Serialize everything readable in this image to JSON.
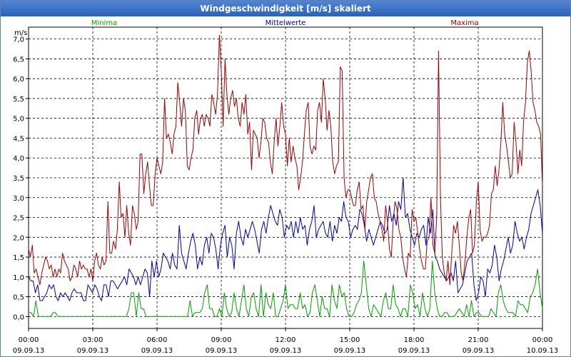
{
  "window": {
    "title": "Windgeschwindigkeit [m/s] skaliert"
  },
  "chart_data": {
    "type": "line",
    "title": "Windgeschwindigkeit [m/s] skaliert",
    "ylabel": "m/s",
    "xlabel": "",
    "ylim": [
      -0.3,
      7.3
    ],
    "xlim": [
      0,
      24
    ],
    "grid": true,
    "legend_position": "top",
    "y_ticks": [
      "0,0",
      "0,5",
      "1,0",
      "1,5",
      "2,0",
      "2,5",
      "3,0",
      "3,5",
      "4,0",
      "4,5",
      "5,0",
      "5,5",
      "6,0",
      "6,5",
      "7,0"
    ],
    "x_ticks": [
      {
        "time": "00:00",
        "date": "09.09.13"
      },
      {
        "time": "03:00",
        "date": "09.09.13"
      },
      {
        "time": "06:00",
        "date": "09.09.13"
      },
      {
        "time": "09:00",
        "date": "09.09.13"
      },
      {
        "time": "12:00",
        "date": "09.09.13"
      },
      {
        "time": "15:00",
        "date": "09.09.13"
      },
      {
        "time": "18:00",
        "date": "09.09.13"
      },
      {
        "time": "21:00",
        "date": "09.09.13"
      },
      {
        "time": "00:00",
        "date": "10.09.13"
      }
    ],
    "series": [
      {
        "name": "Minima",
        "color": "#00a000",
        "values": [
          0.1,
          0.1,
          0.0,
          0.4,
          0.0,
          0.0,
          0.0,
          0.0,
          0.0,
          0.0,
          0.1,
          0.1,
          0.0,
          0.0,
          0.0,
          0.0,
          0.0,
          0.0,
          0.0,
          0.0,
          0.0,
          0.0,
          0.0,
          0.0,
          0.0,
          0.0,
          0.0,
          0.0,
          0.0,
          0.0,
          0.0,
          0.0,
          0.0,
          0.0,
          0.0,
          0.0,
          0.0,
          0.0,
          0.0,
          0.0,
          0.0,
          0.2,
          0.6,
          0.6,
          0.0,
          0.6,
          0.2,
          0.2,
          0.0,
          0.0,
          0.0,
          0.0,
          0.0,
          0.0,
          0.0,
          0.0,
          0.0,
          0.0,
          0.0,
          0.0,
          0.0,
          0.0,
          0.0,
          0.0,
          0.0,
          0.0,
          0.4,
          0.0,
          0.1,
          0.1,
          0.1,
          0.2,
          0.6,
          0.8,
          0.2,
          0.2,
          0.0,
          0.0,
          0.2,
          0.0,
          0.6,
          0.2,
          0.0,
          0.1,
          0.6,
          0.2,
          0.0,
          0.4,
          0.8,
          0.2,
          0.0,
          0.5,
          0.6,
          0.2,
          0.0,
          0.8,
          0.0,
          0.6,
          0.3,
          0.2,
          0.6,
          0.0,
          0.0,
          0.2,
          0.4,
          0.8,
          0.2,
          0.3,
          0.3,
          0.2,
          0.2,
          0.6,
          0.2,
          0.3,
          0.0,
          0.1,
          0.6,
          0.8,
          0.4,
          0.0,
          0.5,
          0.2,
          0.2,
          0.0,
          0.8,
          0.4,
          0.2,
          0.8,
          0.5,
          0.6,
          0.2,
          0.0,
          0.0,
          0.1,
          0.3,
          0.4,
          0.6,
          1.4,
          0.8,
          0.2,
          0.0,
          0.3,
          0.2,
          0.1,
          0.0,
          0.4,
          0.6,
          0.2,
          0.2,
          0.8,
          0.3,
          0.2,
          0.0,
          0.2,
          0.2,
          0.0,
          0.8,
          0.6,
          0.2,
          0.3,
          0.0,
          0.6,
          0.2,
          0.0,
          0.2,
          1.4,
          0.6,
          0.2,
          0.0,
          0.0,
          0.1,
          0.1,
          0.0,
          0.0,
          0.0,
          0.1,
          0.2,
          0.1,
          0.0,
          0.3,
          0.0,
          0.4,
          0.0,
          0.1,
          0.1,
          0.0,
          0.0,
          0.0,
          0.0,
          0.2,
          0.1,
          0.0,
          0.6,
          0.8,
          0.4,
          0.2,
          0.1,
          0.1,
          0.1,
          0.0,
          0.4,
          0.3,
          0.3,
          0.2,
          0.1,
          0.5,
          0.6,
          0.8,
          1.2,
          0.6,
          0.2
        ]
      },
      {
        "name": "Mittelwerte",
        "color": "#0000b0",
        "values": [
          1.0,
          0.9,
          0.9,
          0.6,
          0.8,
          0.4,
          0.4,
          0.5,
          0.6,
          0.8,
          0.7,
          0.8,
          0.5,
          0.4,
          0.6,
          0.5,
          0.6,
          0.5,
          0.4,
          0.6,
          0.7,
          0.6,
          0.6,
          0.6,
          0.4,
          0.4,
          0.8,
          0.7,
          0.6,
          0.8,
          0.7,
          0.5,
          0.4,
          0.8,
          0.8,
          0.5,
          0.9,
          0.9,
          0.8,
          0.7,
          0.8,
          0.9,
          1.0,
          0.8,
          1.2,
          1.1,
          1.0,
          0.8,
          1.0,
          0.8,
          1.0,
          1.2,
          1.1,
          0.5,
          1.4,
          1.0,
          1.4,
          1.0,
          1.2,
          1.6,
          1.5,
          1.4,
          1.2,
          1.6,
          1.3,
          1.2,
          2.3,
          1.6,
          1.4,
          1.2,
          1.6,
          1.9,
          2.1,
          1.8,
          1.2,
          1.5,
          1.3,
          1.8,
          2.0,
          1.6,
          2.1,
          2.0,
          1.7,
          1.2,
          1.8,
          2.1,
          2.3,
          1.5,
          2.0,
          1.8,
          1.2,
          2.1,
          2.4,
          2.0,
          1.8,
          2.2,
          2.0,
          2.2,
          2.4,
          2.2,
          1.9,
          1.6,
          2.2,
          2.4,
          2.1,
          2.5,
          2.8,
          2.6,
          2.4,
          2.3,
          2.7,
          2.5,
          2.0,
          2.3,
          2.2,
          2.4,
          2.0,
          2.4,
          2.1,
          2.5,
          2.2,
          2.3,
          1.8,
          2.2,
          2.4,
          2.8,
          2.0,
          2.2,
          2.3,
          2.4,
          2.1,
          2.0,
          2.4,
          1.9,
          2.3,
          2.1,
          2.5,
          2.4,
          2.9,
          2.5,
          2.4,
          2.0,
          2.2,
          2.3,
          2.2,
          2.7,
          2.6,
          2.3,
          1.9,
          2.2,
          2.0,
          1.8,
          2.0,
          2.2,
          2.4,
          2.3,
          2.1,
          2.2,
          2.8,
          2.4,
          2.6,
          2.3,
          2.9,
          2.7,
          3.5,
          2.5,
          2.6,
          2.2,
          2.0,
          1.8,
          2.1,
          2.0,
          2.2,
          2.3,
          1.8,
          2.5,
          2.1,
          2.7,
          1.5,
          1.4,
          1.2,
          1.1,
          1.0,
          0.9,
          1.0,
          1.1,
          0.9,
          1.4,
          0.6,
          0.7,
          0.8,
          1.1,
          1.4,
          1.5,
          1.6,
          0.8,
          0.4,
          0.6,
          1.0,
          0.9,
          0.5,
          1.2,
          1.1,
          1.3,
          1.8,
          1.5,
          0.9,
          1.2,
          1.4,
          1.7,
          2.0,
          1.6,
          1.8,
          2.4,
          2.1,
          1.9,
          2.0,
          1.7,
          2.0,
          2.2,
          2.6,
          2.8,
          3.0,
          3.2,
          2.8,
          2.1
        ]
      },
      {
        "name": "Maxima",
        "color": "#a00000",
        "values": [
          1.7,
          1.5,
          1.8,
          1.1,
          1.2,
          1.0,
          0.8,
          1.1,
          1.3,
          1.5,
          1.4,
          1.2,
          1.3,
          1.0,
          1.2,
          1.0,
          1.2,
          1.1,
          1.6,
          1.4,
          1.3,
          1.2,
          0.9,
          1.0,
          1.3,
          1.2,
          1.0,
          1.4,
          1.2,
          1.3,
          1.2,
          1.2,
          1.0,
          1.2,
          0.9,
          1.4,
          1.6,
          1.3,
          1.2,
          1.5,
          1.3,
          1.4,
          2.9,
          1.6,
          1.6,
          1.9,
          1.7,
          2.2,
          3.4,
          2.5,
          2.6,
          2.0,
          2.8,
          2.1,
          1.8,
          2.8,
          2.6,
          2.2,
          2.4,
          4.1,
          4.1,
          3.1,
          3.6,
          3.9,
          3.3,
          2.8,
          2.8,
          3.6,
          4.0,
          3.8,
          3.6,
          3.9,
          5.5,
          4.5,
          4.6,
          4.4,
          4.1,
          4.6,
          4.8,
          5.9,
          5.4,
          4.8,
          5.5,
          5.2,
          3.8,
          3.7,
          4.0,
          4.2,
          5.0,
          5.2,
          4.6,
          5.0,
          5.1,
          4.8,
          5.1,
          5.0,
          4.8,
          5.6,
          5.4,
          5.1,
          5.6,
          7.1,
          6.2,
          4.8,
          6.5,
          5.6,
          5.1,
          5.5,
          5.7,
          5.3,
          5.5,
          5.0,
          4.8,
          5.4,
          5.1,
          5.6,
          4.6,
          4.9,
          3.7,
          4.7,
          4.6,
          4.5,
          4.0,
          4.4,
          5.0,
          4.9,
          4.5,
          4.4,
          3.9,
          3.6,
          4.4,
          5.0,
          4.3,
          4.8,
          5.4,
          4.8,
          4.6,
          3.8,
          4.5,
          3.9,
          4.3,
          4.0,
          3.8,
          3.2,
          3.5,
          3.9,
          4.6,
          5.2,
          5.4,
          4.3,
          4.1,
          4.3,
          4.2,
          5.2,
          5.4,
          4.9,
          6.0,
          5.5,
          4.7,
          5.2,
          4.8,
          3.9,
          3.6,
          3.8,
          3.9,
          6.3,
          6.2,
          3.5,
          3.0,
          3.2,
          3.2,
          3.0,
          2.8,
          2.8,
          3.2,
          3.4,
          2.7,
          2.8,
          2.2,
          2.9,
          3.2,
          3.5,
          3.6,
          3.0,
          2.9,
          2.6,
          2.4,
          2.2,
          1.9,
          2.8,
          2.4,
          1.7,
          1.5,
          2.4,
          2.9,
          2.7,
          2.2,
          2.0,
          1.5,
          1.2,
          1.0,
          1.6,
          1.5,
          2.7,
          2.4,
          2.5,
          2.1,
          1.7,
          1.4,
          1.2,
          1.2,
          1.9,
          2.0,
          3.0,
          1.8,
          1.6,
          2.5,
          6.7,
          3.0,
          1.5,
          1.1,
          0.9,
          1.4,
          0.8,
          1.6,
          2.3,
          2.1,
          2.4,
          1.8,
          1.1,
          0.9,
          1.4,
          2.0,
          2.5,
          2.7,
          1.6,
          1.8,
          2.9,
          3.4,
          2.2,
          1.9,
          2.0,
          2.0,
          2.1,
          2.3,
          3.1,
          3.2,
          3.8,
          3.3,
          3.7,
          4.4,
          5.4,
          4.6,
          4.3,
          3.9,
          3.5,
          3.6,
          4.9,
          4.4,
          3.6,
          4.2,
          3.8,
          4.9,
          5.4,
          6.4,
          6.7,
          6.2,
          5.4,
          5.2,
          4.9,
          4.8,
          4.6,
          3.3
        ]
      }
    ]
  }
}
